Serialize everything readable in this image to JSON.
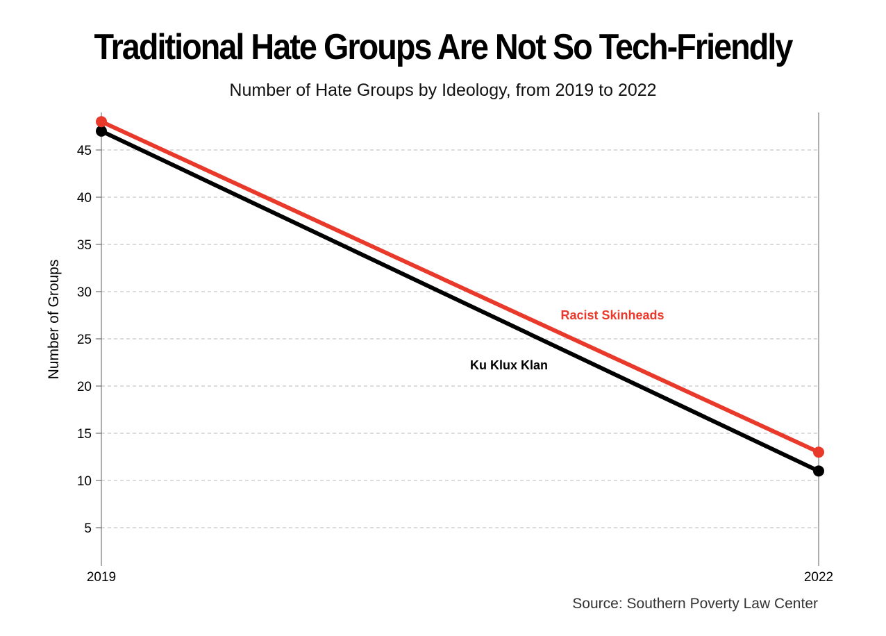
{
  "chart_data": {
    "type": "line",
    "title": "Traditional Hate Groups Are Not So Tech-Friendly",
    "subtitle": "Number of Hate Groups by Ideology, from 2019 to 2022",
    "ylabel": "Number of Groups",
    "source": "Source: Southern Poverty Law Center",
    "x": [
      "2019",
      "2022"
    ],
    "ylim": [
      0,
      48
    ],
    "yticks": [
      5,
      10,
      15,
      20,
      25,
      30,
      35,
      40,
      45
    ],
    "grid": true,
    "series": [
      {
        "name": "Ku Klux Klan",
        "values": [
          47,
          11
        ],
        "color": "#000000"
      },
      {
        "name": "Racist Skinheads",
        "values": [
          48,
          13
        ],
        "color": "#e8392b"
      }
    ]
  }
}
